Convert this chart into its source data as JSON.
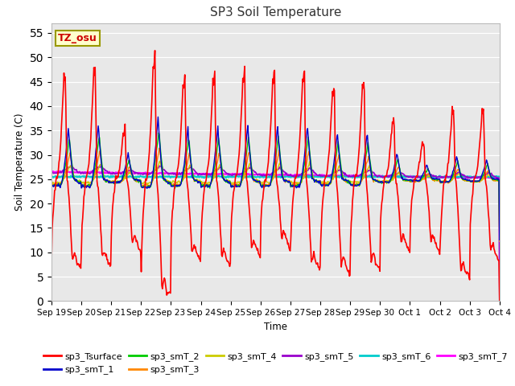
{
  "title": "SP3 Soil Temperature",
  "xlabel": "Time",
  "ylabel": "Soil Temperature (C)",
  "ylim": [
    0,
    57
  ],
  "yticks": [
    0,
    5,
    10,
    15,
    20,
    25,
    30,
    35,
    40,
    45,
    50,
    55
  ],
  "tz_label": "TZ_osu",
  "background_color": "#e8e8e8",
  "plot_bg": "#e8e8e8",
  "series_colors": {
    "sp3_Tsurface": "#ff0000",
    "sp3_smT_1": "#0000cc",
    "sp3_smT_2": "#00cc00",
    "sp3_smT_3": "#ff8800",
    "sp3_smT_4": "#cccc00",
    "sp3_smT_5": "#9900cc",
    "sp3_smT_6": "#00cccc",
    "sp3_smT_7": "#ff00ff"
  },
  "xtick_labels": [
    "Sep 19",
    "Sep 20",
    "Sep 21",
    "Sep 22",
    "Sep 23",
    "Sep 24",
    "Sep 25",
    "Sep 26",
    "Sep 27",
    "Sep 28",
    "Sep 29",
    "Sep 30",
    "Oct 1",
    "Oct 2",
    "Oct 3",
    "Oct 4"
  ]
}
